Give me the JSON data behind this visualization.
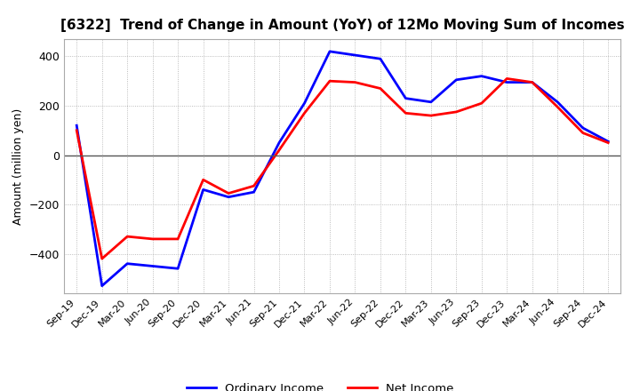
{
  "title": "[6322]  Trend of Change in Amount (YoY) of 12Mo Moving Sum of Incomes",
  "ylabel": "Amount (million yen)",
  "legend": [
    "Ordinary Income",
    "Net Income"
  ],
  "line_colors": [
    "blue",
    "red"
  ],
  "xlabels": [
    "Sep-19",
    "Dec-19",
    "Mar-20",
    "Jun-20",
    "Sep-20",
    "Dec-20",
    "Mar-21",
    "Jun-21",
    "Sep-21",
    "Dec-21",
    "Mar-22",
    "Jun-22",
    "Sep-22",
    "Dec-22",
    "Mar-23",
    "Jun-23",
    "Sep-23",
    "Dec-23",
    "Mar-24",
    "Jun-24",
    "Sep-24",
    "Dec-24"
  ],
  "ordinary_income": [
    120,
    -530,
    -440,
    -450,
    -460,
    -140,
    -170,
    -150,
    50,
    210,
    420,
    405,
    390,
    230,
    215,
    305,
    320,
    295,
    295,
    215,
    110,
    55
  ],
  "net_income": [
    100,
    -420,
    -330,
    -340,
    -340,
    -100,
    -155,
    -125,
    20,
    170,
    300,
    295,
    270,
    170,
    160,
    175,
    210,
    310,
    295,
    195,
    90,
    50
  ],
  "ylim": [
    -560,
    470
  ],
  "yticks": [
    -400,
    -200,
    0,
    200,
    400
  ],
  "background_color": "#ffffff",
  "grid_color": "#aaaaaa",
  "zero_line_color": "#555555"
}
